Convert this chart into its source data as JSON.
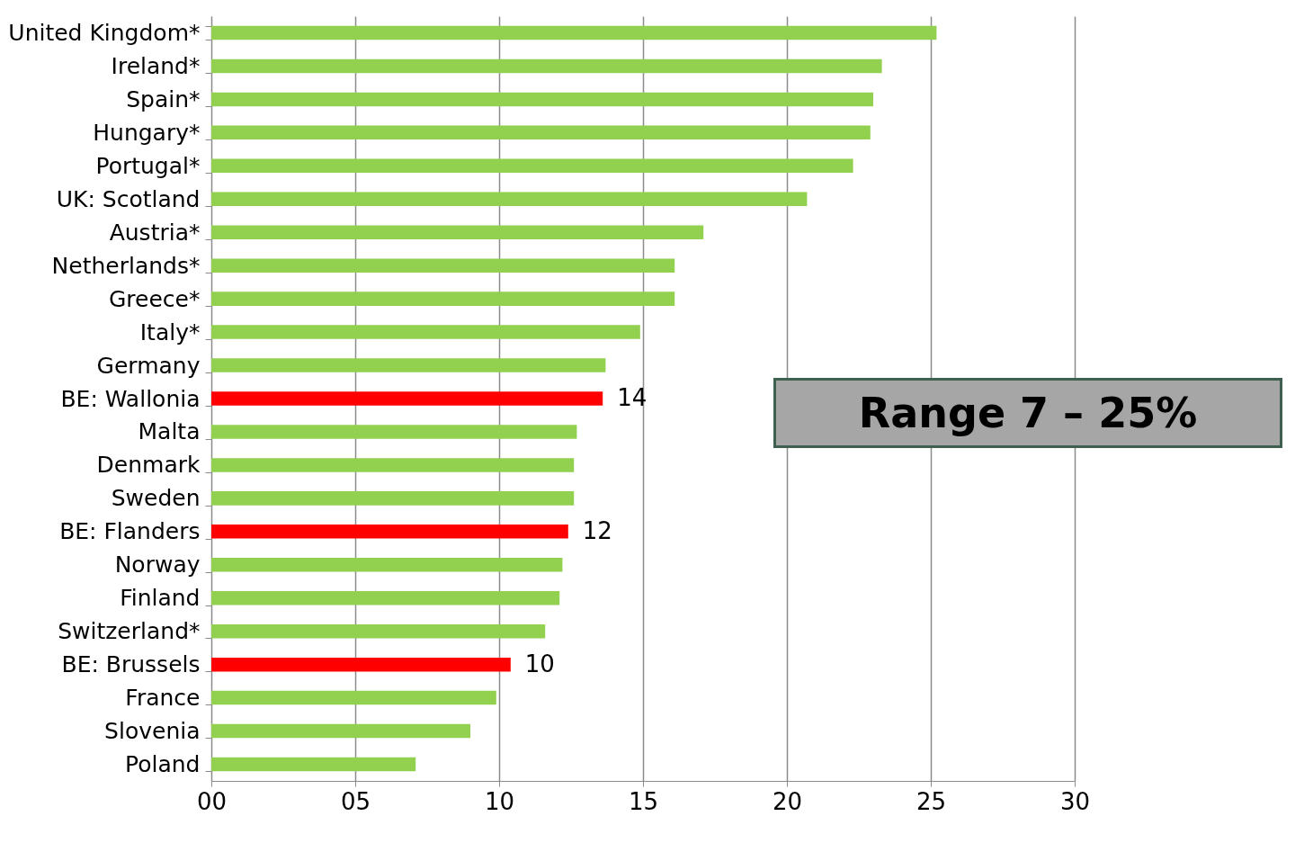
{
  "chart_data": {
    "type": "bar",
    "orientation": "horizontal",
    "categories": [
      "United Kingdom*",
      "Ireland*",
      "Spain*",
      "Hungary*",
      "Portugal*",
      "UK: Scotland",
      "Austria*",
      "Netherlands*",
      "Greece*",
      "Italy*",
      "Germany",
      "BE: Wallonia",
      "Malta",
      "Denmark",
      "Sweden",
      "BE: Flanders",
      "Norway",
      "Finland",
      "Switzerland*",
      "BE: Brussels",
      "France",
      "Slovenia",
      "Poland"
    ],
    "values": [
      25.2,
      23.3,
      23.0,
      22.9,
      22.3,
      20.7,
      17.1,
      16.1,
      16.1,
      14.9,
      13.7,
      13.6,
      12.7,
      12.6,
      12.6,
      12.4,
      12.2,
      12.1,
      11.6,
      10.4,
      9.9,
      9.0,
      7.1
    ],
    "colors": [
      "#92d050",
      "#92d050",
      "#92d050",
      "#92d050",
      "#92d050",
      "#92d050",
      "#92d050",
      "#92d050",
      "#92d050",
      "#92d050",
      "#92d050",
      "#ff0000",
      "#92d050",
      "#92d050",
      "#92d050",
      "#ff0000",
      "#92d050",
      "#92d050",
      "#92d050",
      "#ff0000",
      "#92d050",
      "#92d050",
      "#92d050"
    ],
    "value_labels": [
      null,
      null,
      null,
      null,
      null,
      null,
      null,
      null,
      null,
      null,
      null,
      "14",
      null,
      null,
      null,
      "12",
      null,
      null,
      null,
      "10",
      null,
      null,
      null
    ],
    "xlim": [
      0,
      30
    ],
    "xticks": [
      {
        "value": 0,
        "label": "00"
      },
      {
        "value": 5,
        "label": "05"
      },
      10,
      15,
      20,
      25,
      30
    ],
    "grid": "x",
    "annotations": [
      "Range 7 – 25%"
    ]
  }
}
